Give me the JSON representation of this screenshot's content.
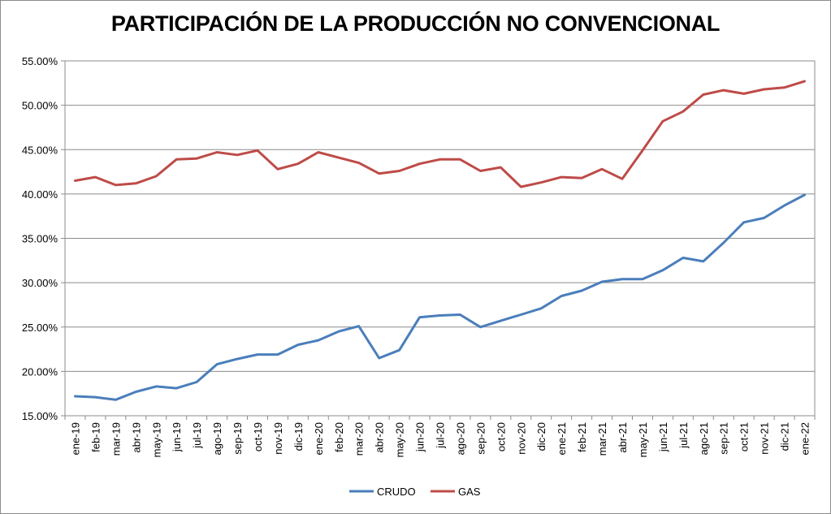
{
  "chart_data": {
    "type": "line",
    "title": "PARTICIPACIÓN DE LA PRODUCCIÓN NO CONVENCIONAL",
    "xlabel": "",
    "ylabel": "",
    "ylim": [
      15,
      55
    ],
    "yticks": [
      "15.00%",
      "20.00%",
      "25.00%",
      "30.00%",
      "35.00%",
      "40.00%",
      "45.00%",
      "50.00%",
      "55.00%"
    ],
    "grid": true,
    "legend_position": "bottom",
    "categories": [
      "ene-19",
      "feb-19",
      "mar-19",
      "abr-19",
      "may-19",
      "jun-19",
      "jul-19",
      "ago-19",
      "sep-19",
      "oct-19",
      "nov-19",
      "dic-19",
      "ene-20",
      "feb-20",
      "mar-20",
      "abr-20",
      "may-20",
      "jun-20",
      "jul-20",
      "ago-20",
      "sep-20",
      "oct-20",
      "nov-20",
      "dic-20",
      "ene-21",
      "feb-21",
      "mar-21",
      "abr-21",
      "may-21",
      "jun-21",
      "jul-21",
      "ago-21",
      "sep-21",
      "oct-21",
      "nov-21",
      "dic-21",
      "ene-22"
    ],
    "series": [
      {
        "name": "CRUDO",
        "color": "#4a7ebb",
        "values": [
          17.2,
          17.1,
          16.8,
          17.7,
          18.3,
          18.1,
          18.8,
          20.8,
          21.4,
          21.9,
          21.9,
          23.0,
          23.5,
          24.5,
          25.1,
          21.5,
          22.4,
          26.1,
          26.3,
          26.4,
          25.0,
          25.7,
          26.4,
          27.1,
          28.5,
          29.1,
          30.1,
          30.4,
          30.4,
          31.4,
          32.8,
          32.4,
          34.5,
          36.8,
          37.3,
          38.7,
          39.9
        ]
      },
      {
        "name": "GAS",
        "color": "#be4b48",
        "values": [
          41.5,
          41.9,
          41.0,
          41.2,
          42.0,
          43.9,
          44.0,
          44.7,
          44.4,
          44.9,
          42.8,
          43.4,
          44.7,
          44.1,
          43.5,
          42.3,
          42.6,
          43.4,
          43.9,
          43.9,
          42.6,
          43.0,
          40.8,
          41.3,
          41.9,
          41.8,
          42.8,
          41.7,
          44.9,
          48.2,
          49.3,
          51.2,
          51.7,
          51.3,
          51.8,
          52.0,
          52.7
        ]
      }
    ]
  }
}
